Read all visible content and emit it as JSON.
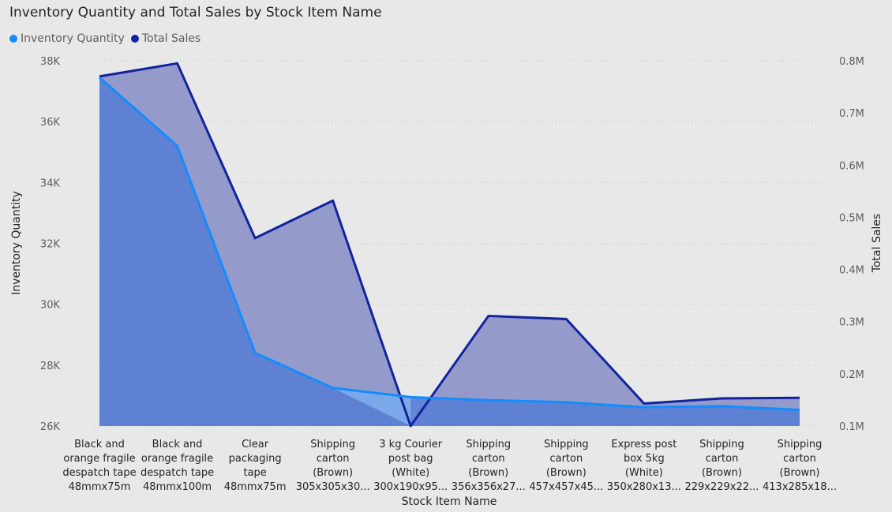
{
  "chart_data": {
    "type": "area",
    "title": "Inventory Quantity and Total Sales by Stock Item Name",
    "xlabel": "Stock Item Name",
    "ylabel": "Inventory Quantity",
    "y2label": "Total Sales",
    "legend_position": "top-left",
    "categories": [
      [
        "Black and",
        "orange fragile",
        "despatch tape",
        "48mmx75m"
      ],
      [
        "Black and",
        "orange fragile",
        "despatch tape",
        "48mmx100m"
      ],
      [
        "Clear",
        "packaging",
        "tape",
        "48mmx75m"
      ],
      [
        "Shipping",
        "carton",
        "(Brown)",
        "305x305x30..."
      ],
      [
        "3 kg Courier",
        "post bag",
        "(White)",
        "300x190x95..."
      ],
      [
        "Shipping",
        "carton",
        "(Brown)",
        "356x356x27..."
      ],
      [
        "Shipping",
        "carton",
        "(Brown)",
        "457x457x45..."
      ],
      [
        "Express post",
        "box 5kg",
        "(White)",
        "350x280x13..."
      ],
      [
        "Shipping",
        "carton",
        "(Brown)",
        "229x229x22..."
      ],
      [
        "Shipping",
        "carton",
        "(Brown)",
        "413x285x18..."
      ]
    ],
    "series": [
      {
        "name": "Inventory Quantity",
        "axis": "left",
        "color": "#118dff",
        "fill": "#5b7fd4",
        "values": [
          37450,
          35200,
          28400,
          27250,
          26950,
          26850,
          26780,
          26620,
          26650,
          26530
        ]
      },
      {
        "name": "Total Sales",
        "axis": "right",
        "color": "#12239e",
        "fill": "#8f96c8",
        "values": [
          770000,
          795000,
          460000,
          532000,
          100000,
          311000,
          305000,
          143000,
          153000,
          154000
        ]
      }
    ],
    "y_left": {
      "min": 26000,
      "max": 38000,
      "ticks": [
        26000,
        28000,
        30000,
        32000,
        34000,
        36000,
        38000
      ],
      "tick_labels": [
        "26K",
        "28K",
        "30K",
        "32K",
        "34K",
        "36K",
        "38K"
      ]
    },
    "y_right": {
      "min": 100000,
      "max": 800000,
      "ticks": [
        100000,
        200000,
        300000,
        400000,
        500000,
        600000,
        700000,
        800000
      ],
      "tick_labels": [
        "0.1M",
        "0.2M",
        "0.3M",
        "0.4M",
        "0.5M",
        "0.6M",
        "0.7M",
        "0.8M"
      ]
    },
    "grid": true
  }
}
